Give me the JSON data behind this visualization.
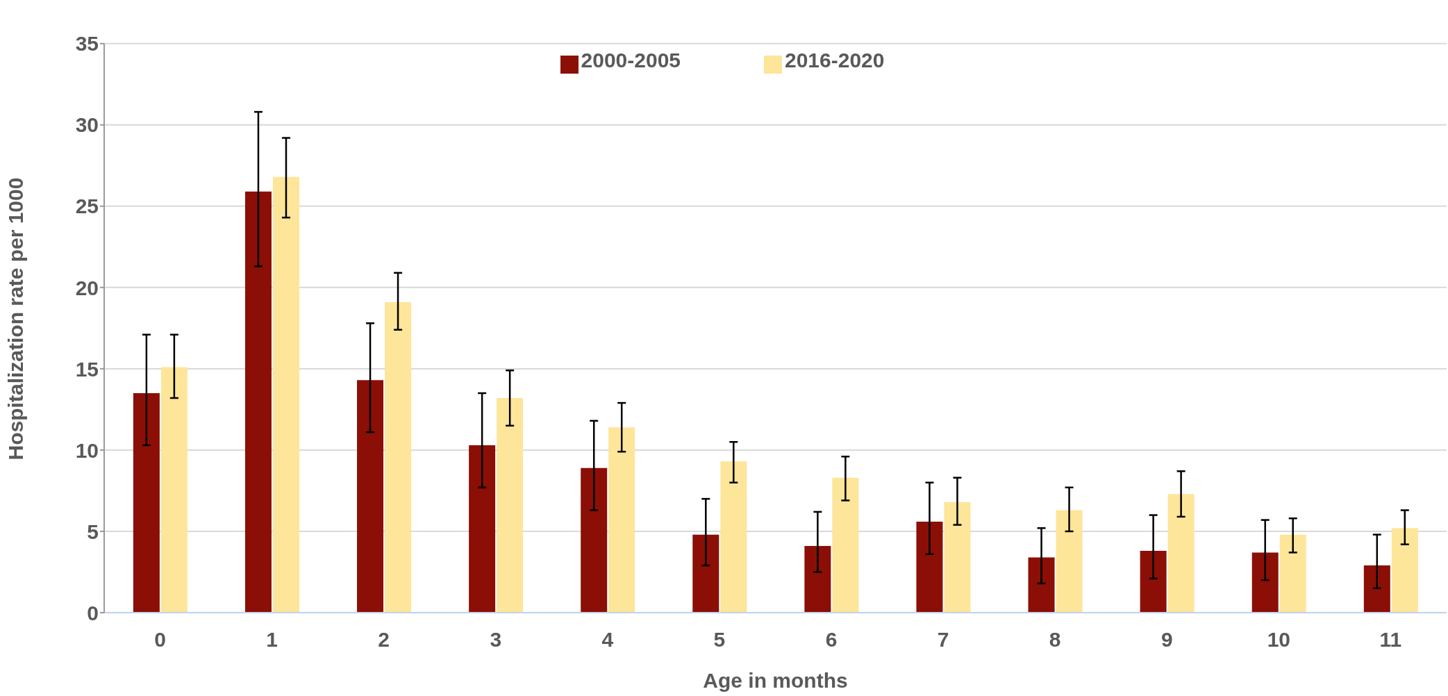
{
  "chart_data": {
    "type": "bar",
    "xlabel": "Age in months",
    "ylabel": "Hospitalization rate per 1000",
    "categories": [
      "0",
      "1",
      "2",
      "3",
      "4",
      "5",
      "6",
      "7",
      "8",
      "9",
      "10",
      "11"
    ],
    "series": [
      {
        "name": "2000-2005",
        "color": "#8b0f06",
        "values": [
          13.5,
          25.9,
          14.3,
          10.3,
          8.9,
          4.8,
          4.1,
          5.6,
          3.4,
          3.8,
          3.7,
          2.9
        ],
        "errors": [
          [
            10.3,
            17.1
          ],
          [
            21.3,
            30.8
          ],
          [
            11.1,
            17.8
          ],
          [
            7.7,
            13.5
          ],
          [
            6.3,
            11.8
          ],
          [
            2.9,
            7.0
          ],
          [
            2.5,
            6.2
          ],
          [
            3.6,
            8.0
          ],
          [
            1.8,
            5.2
          ],
          [
            2.1,
            6.0
          ],
          [
            2.0,
            5.7
          ],
          [
            1.5,
            4.8
          ]
        ]
      },
      {
        "name": "2016-2020",
        "color": "#fde59a",
        "values": [
          15.1,
          26.8,
          19.1,
          13.2,
          11.4,
          9.3,
          8.3,
          6.8,
          6.3,
          7.3,
          4.8,
          5.2
        ],
        "errors": [
          [
            13.2,
            17.1
          ],
          [
            24.3,
            29.2
          ],
          [
            17.4,
            20.9
          ],
          [
            11.5,
            14.9
          ],
          [
            9.9,
            12.9
          ],
          [
            8.0,
            10.5
          ],
          [
            6.9,
            9.6
          ],
          [
            5.4,
            8.3
          ],
          [
            5.0,
            7.7
          ],
          [
            5.9,
            8.7
          ],
          [
            3.7,
            5.8
          ],
          [
            4.2,
            6.3
          ]
        ]
      }
    ],
    "ylim": [
      0,
      35
    ],
    "yticks": [
      0,
      5,
      10,
      15,
      20,
      25,
      30,
      35
    ],
    "grid": "y",
    "legend": "top"
  }
}
